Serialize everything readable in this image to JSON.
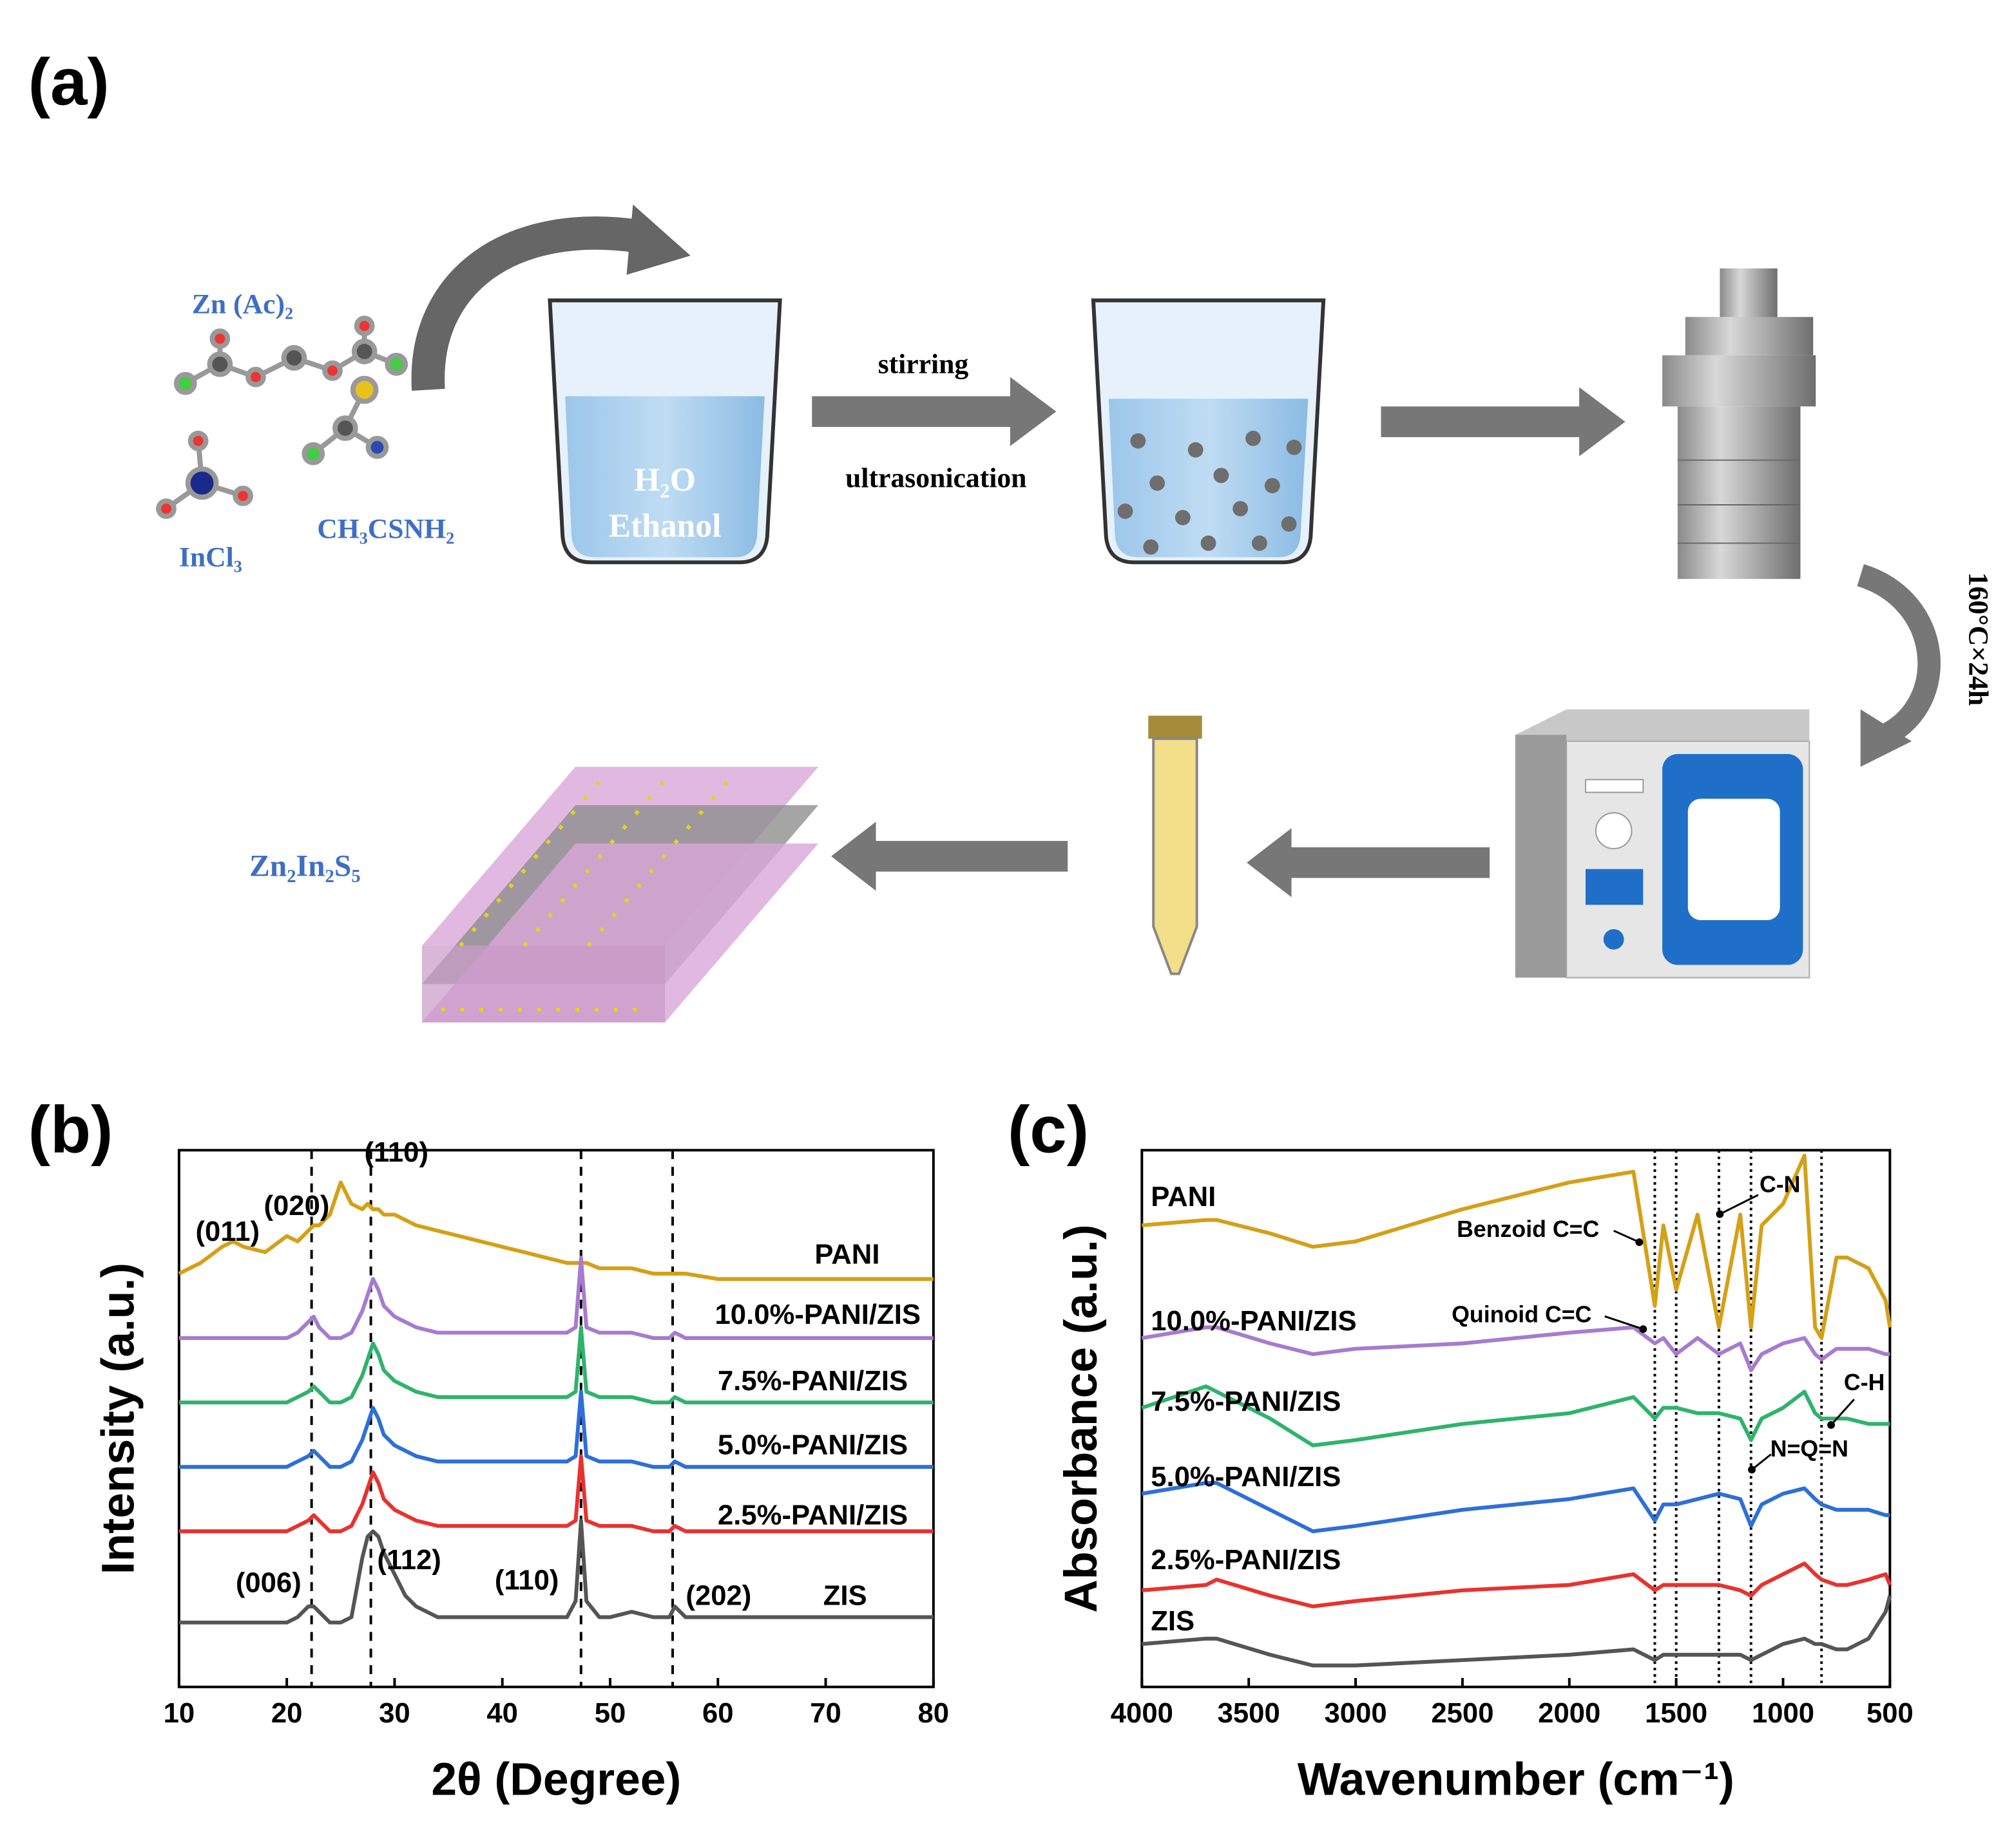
{
  "panels": {
    "a": {
      "label": "(a)",
      "reagents": [
        "Zn (Ac)₂",
        "InCl₃",
        "CH₃CSNH₂"
      ],
      "solvent": [
        "H₂O",
        "Ethanol"
      ],
      "step1": [
        "stirring",
        "ultrasonication"
      ],
      "condition": "160°C×24h",
      "product": "Zn₂In₂S₅"
    }
  },
  "chart_data": [
    {
      "type": "line",
      "label": "(b)",
      "xlabel": "2θ (Degree)",
      "ylabel": "Intensity (a.u.)",
      "xlim": [
        10,
        80
      ],
      "xticks": [
        10,
        20,
        30,
        40,
        50,
        60,
        70,
        80
      ],
      "ylim": [
        0,
        100
      ],
      "x": [
        10,
        12,
        14,
        15,
        16,
        18,
        20,
        21,
        22,
        22.5,
        23,
        24,
        25,
        26,
        27,
        27.5,
        28,
        28.5,
        29,
        30,
        31,
        32,
        34,
        36,
        38,
        40,
        42,
        44,
        46,
        46.8,
        47.3,
        47.8,
        49,
        50,
        52,
        54,
        55.5,
        56,
        57,
        60,
        65,
        70,
        75,
        80
      ],
      "reference_lines": [
        22.3,
        27.8,
        47.3,
        55.8
      ],
      "reference_style": "dashed",
      "annotations": [
        "(011)",
        "(020)",
        "(110)",
        "(006)",
        "(112)",
        "(110)",
        "(202)"
      ],
      "series": [
        {
          "name": "PANI",
          "color": "#d4a017",
          "values": [
            77,
            79,
            82,
            83,
            82,
            81,
            84,
            83,
            85,
            86,
            86,
            88,
            94,
            90,
            89,
            90,
            89,
            89,
            88,
            88,
            87,
            86,
            85,
            84,
            83,
            82,
            81,
            80,
            79,
            79,
            79,
            79,
            78,
            78,
            78,
            77,
            77,
            77,
            77,
            76,
            76,
            76,
            76,
            76
          ]
        },
        {
          "name": "10.0%-PANI/ZIS",
          "color": "#a77bd0",
          "values": [
            65,
            65,
            65,
            65,
            65,
            65,
            65,
            66,
            68,
            69,
            67,
            65,
            65,
            66,
            70,
            73,
            76,
            74,
            71,
            69,
            68,
            67,
            66,
            66,
            66,
            66,
            66,
            66,
            66,
            67,
            80,
            67,
            66,
            66,
            66,
            65,
            65,
            66,
            65,
            65,
            65,
            65,
            65,
            65
          ]
        },
        {
          "name": "7.5%-PANI/ZIS",
          "color": "#2fb36b",
          "values": [
            53,
            53,
            53,
            53,
            53,
            53,
            53,
            54,
            55,
            56,
            55,
            53,
            53,
            54,
            58,
            61,
            64,
            62,
            59,
            57,
            56,
            55,
            54,
            54,
            54,
            54,
            54,
            54,
            54,
            55,
            67,
            55,
            54,
            54,
            54,
            53,
            53,
            54,
            53,
            53,
            53,
            53,
            53,
            53
          ]
        },
        {
          "name": "5.0%-PANI/ZIS",
          "color": "#2e6fd8",
          "values": [
            41,
            41,
            41,
            41,
            41,
            41,
            41,
            42,
            43,
            44,
            43,
            41,
            41,
            42,
            46,
            49,
            52,
            50,
            47,
            45,
            44,
            43,
            42,
            42,
            42,
            42,
            42,
            42,
            42,
            43,
            55,
            43,
            42,
            42,
            42,
            41,
            41,
            42,
            41,
            41,
            41,
            41,
            41,
            41
          ]
        },
        {
          "name": "2.5%-PANI/ZIS",
          "color": "#e8322f",
          "values": [
            29,
            29,
            29,
            29,
            29,
            29,
            29,
            30,
            31,
            32,
            31,
            29,
            29,
            30,
            34,
            37,
            40,
            38,
            35,
            33,
            32,
            31,
            30,
            30,
            30,
            30,
            30,
            30,
            30,
            31,
            43,
            31,
            30,
            30,
            30,
            29,
            29,
            30,
            29,
            29,
            29,
            29,
            29,
            29
          ]
        },
        {
          "name": "ZIS",
          "color": "#555555",
          "values": [
            12,
            12,
            12,
            12,
            12,
            12,
            12,
            13,
            15,
            15,
            14,
            12,
            12,
            13,
            24,
            28,
            29,
            28,
            25,
            21,
            17,
            15,
            13,
            13,
            13,
            13,
            13,
            13,
            13,
            16,
            31,
            16,
            13,
            13,
            14,
            13,
            13,
            15,
            13,
            13,
            13,
            13,
            13,
            13
          ]
        }
      ]
    },
    {
      "type": "line",
      "label": "(c)",
      "xlabel": "Wavenumber (cm⁻¹)",
      "ylabel": "Absorbance (a.u.)",
      "xlim": [
        4000,
        500
      ],
      "xticks": [
        4000,
        3500,
        3000,
        2500,
        2000,
        1500,
        1000,
        500
      ],
      "ylim": [
        0,
        100
      ],
      "x": [
        4000,
        3700,
        3650,
        3400,
        3200,
        3000,
        2500,
        2000,
        1700,
        1600,
        1560,
        1500,
        1400,
        1300,
        1200,
        1150,
        1100,
        1000,
        900,
        850,
        820,
        750,
        700,
        600,
        520,
        500
      ],
      "reference_lines": [
        1600,
        1500,
        1300,
        1150,
        820
      ],
      "reference_style": "dotted",
      "annotations": [
        "C-N",
        "Benzoid C=C",
        "Quinoid C=C",
        "C-H",
        "N=Q=N"
      ],
      "series": [
        {
          "name": "PANI",
          "color": "#d4a017",
          "values": [
            86,
            87,
            87,
            84.5,
            82,
            83,
            89,
            94,
            96,
            71,
            86,
            74,
            88,
            67,
            88,
            67,
            86,
            90,
            99,
            67,
            65,
            80,
            80,
            78,
            72,
            67
          ]
        },
        {
          "name": "10.0%-PANI/ZIS",
          "color": "#a77bd0",
          "values": [
            65,
            67,
            67,
            64,
            62,
            63,
            64,
            66,
            67,
            64,
            65,
            62,
            65,
            62,
            64,
            59,
            62,
            64,
            65,
            62,
            61,
            63,
            63,
            63,
            62,
            62
          ]
        },
        {
          "name": "7.5%-PANI/ZIS",
          "color": "#2fb36b",
          "values": [
            52,
            56,
            55,
            50,
            45,
            46,
            49,
            51,
            54,
            50,
            52,
            52,
            51,
            51,
            50,
            46,
            50,
            52,
            55,
            51,
            50,
            50,
            50,
            49,
            49,
            49
          ]
        },
        {
          "name": "5.0%-PANI/ZIS",
          "color": "#2e6fd8",
          "values": [
            36,
            38,
            38,
            33,
            29,
            30,
            33,
            35,
            37,
            31,
            34,
            34,
            35,
            36,
            35,
            30,
            34,
            36,
            37,
            35,
            34,
            33,
            33,
            33,
            32,
            32
          ]
        },
        {
          "name": "2.5%-PANI/ZIS",
          "color": "#e8322f",
          "values": [
            18,
            19,
            20,
            17,
            15,
            16,
            18,
            19,
            21,
            18,
            19,
            19,
            19,
            19,
            18,
            17,
            19,
            21,
            23,
            21,
            20,
            19,
            19,
            20,
            21,
            19
          ]
        },
        {
          "name": "ZIS",
          "color": "#555555",
          "values": [
            8,
            9,
            9,
            6,
            4,
            4,
            5,
            6,
            7,
            5,
            6,
            6,
            6,
            6,
            6,
            5,
            6,
            8,
            9,
            8,
            8,
            7,
            7,
            9,
            14,
            17
          ]
        }
      ]
    }
  ]
}
